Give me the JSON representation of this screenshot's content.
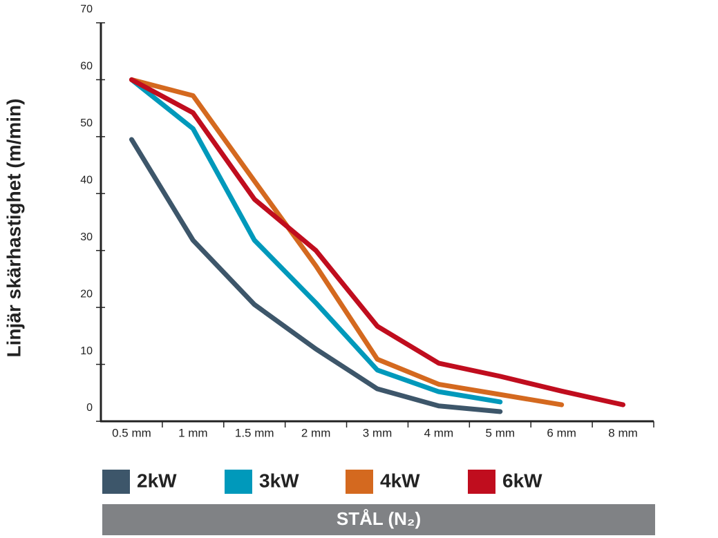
{
  "chart_data": {
    "type": "line",
    "y_label": "Linjär skärhastighet (m/min)",
    "footer": "STÅL (N₂)",
    "categories": [
      "0.5 mm",
      "1 mm",
      "1.5 mm",
      "2 mm",
      "3 mm",
      "4 mm",
      "5 mm",
      "6 mm",
      "8 mm"
    ],
    "series": [
      {
        "name": "2kW",
        "color": "#3d566a",
        "values": [
          49.5,
          31.8,
          20.5,
          12.7,
          5.7,
          2.7,
          1.7,
          null,
          null
        ]
      },
      {
        "name": "3kW",
        "color": "#0099bb",
        "values": [
          60,
          51.4,
          31.8,
          20.8,
          9,
          5.2,
          3.4,
          null,
          null
        ]
      },
      {
        "name": "4kW",
        "color": "#d4691f",
        "values": [
          60,
          57.2,
          42.2,
          27.3,
          10.9,
          6.5,
          4.7,
          2.9,
          null
        ]
      },
      {
        "name": "6kW",
        "color": "#c00d1e",
        "values": [
          60,
          54.2,
          39,
          30,
          16.7,
          10.2,
          7.9,
          5.3,
          2.9
        ]
      }
    ],
    "ylim": [
      0,
      70
    ],
    "yticks": [
      0,
      10,
      20,
      30,
      40,
      50,
      60,
      70
    ]
  }
}
